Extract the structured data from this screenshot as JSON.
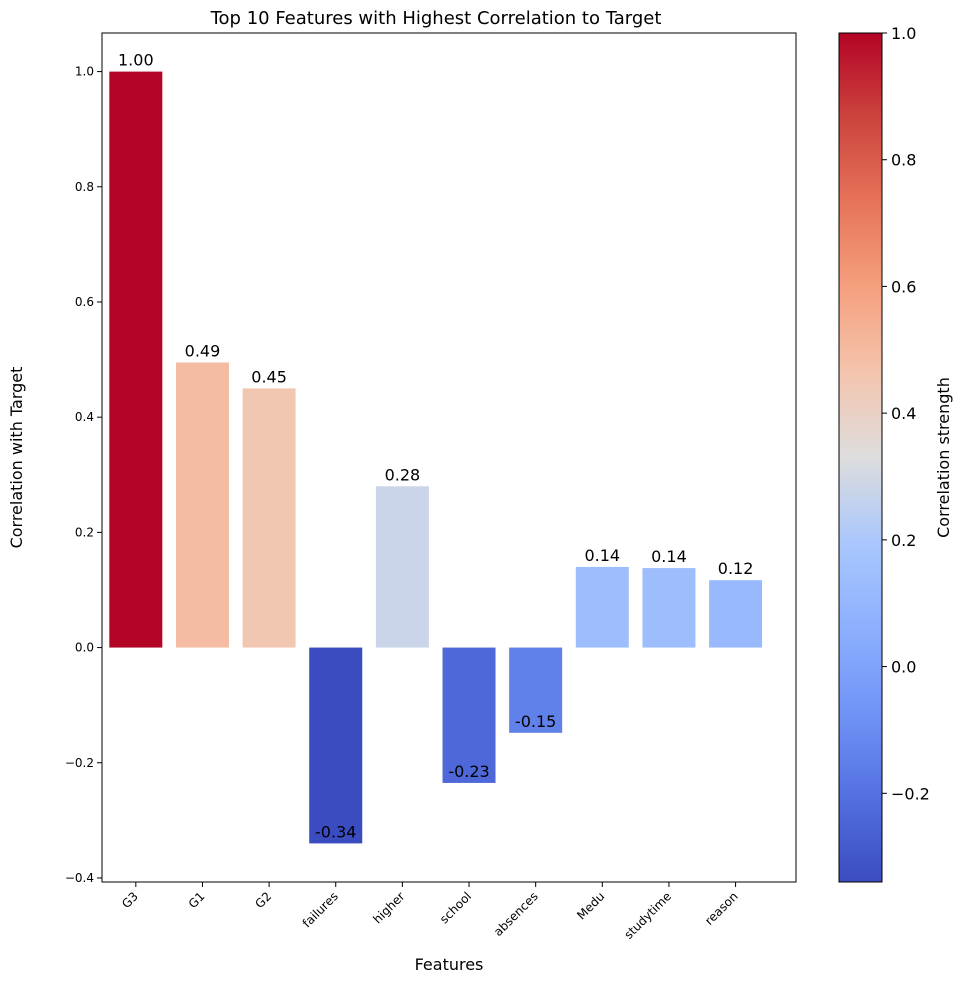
{
  "chart_data": {
    "type": "bar",
    "title": "Top 10 Features with Highest Correlation to Target",
    "xlabel": "Features",
    "ylabel": "Correlation with Target",
    "categories": [
      "G3",
      "G1",
      "G2",
      "failures",
      "higher",
      "school",
      "absences",
      "Medu",
      "studytime",
      "reason"
    ],
    "values": [
      1.0,
      0.495,
      0.45,
      -0.34,
      0.28,
      -0.235,
      -0.148,
      0.14,
      0.138,
      0.117
    ],
    "value_labels": [
      "1.00",
      "0.49",
      "0.45",
      "-0.34",
      "0.28",
      "-0.23",
      "-0.15",
      "0.14",
      "0.14",
      "0.12"
    ],
    "yticks": [
      -0.4,
      -0.2,
      0.0,
      0.2,
      0.4,
      0.6,
      0.8,
      1.0
    ],
    "ytick_labels": [
      "−0.4",
      "−0.2",
      "0.0",
      "0.2",
      "0.4",
      "0.6",
      "0.8",
      "1.0"
    ],
    "ylim": [
      -0.407,
      1.067
    ],
    "grid": false,
    "colormap": "coolwarm",
    "colorbar": {
      "label": "Correlation strength",
      "range": [
        -0.34,
        1.0
      ],
      "ticks": [
        -0.2,
        0.0,
        0.2,
        0.4,
        0.6,
        0.8,
        1.0
      ],
      "tick_labels": [
        "−0.2",
        "0.0",
        "0.2",
        "0.4",
        "0.6",
        "0.8",
        "1.0"
      ]
    }
  }
}
